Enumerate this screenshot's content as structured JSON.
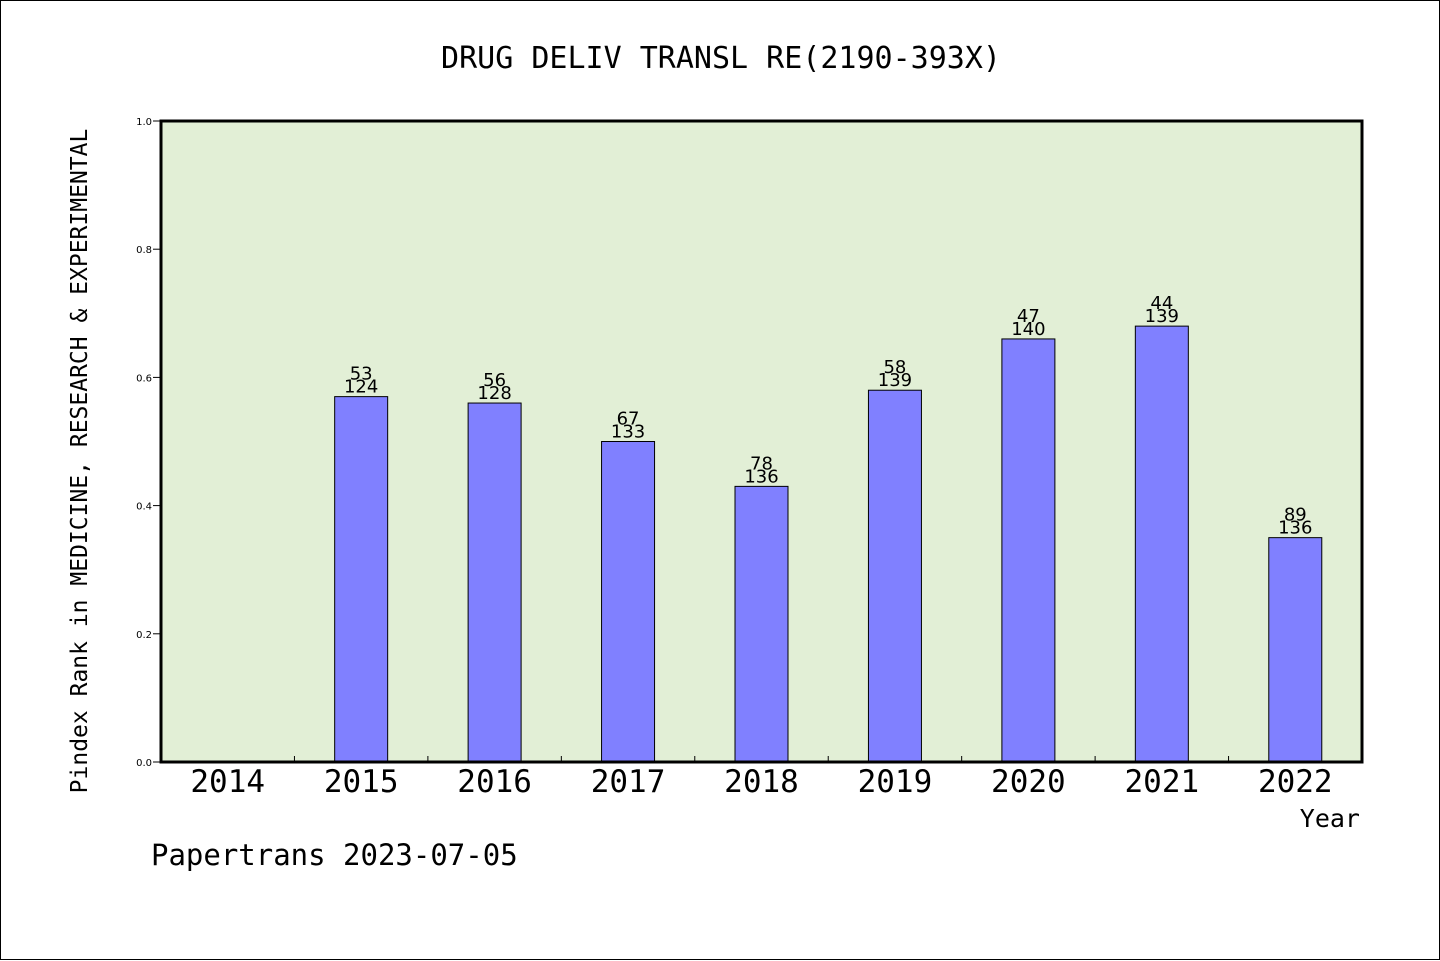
{
  "chart_data": {
    "type": "bar",
    "title": "DRUG DELIV TRANSL RE(2190-393X)",
    "xlabel": "Year",
    "ylabel": "Pindex Rank in MEDICINE, RESEARCH & EXPERIMENTAL",
    "categories": [
      "2014",
      "2015",
      "2016",
      "2017",
      "2018",
      "2019",
      "2020",
      "2021",
      "2022"
    ],
    "values": [
      null,
      0.57,
      0.56,
      0.5,
      0.43,
      0.58,
      0.66,
      0.68,
      0.35
    ],
    "rank_labels": [
      "",
      "53",
      "56",
      "67",
      "78",
      "58",
      "47",
      "44",
      "89"
    ],
    "total_labels": [
      "",
      "124",
      "128",
      "133",
      "136",
      "139",
      "140",
      "139",
      "136"
    ],
    "ylim": [
      0,
      1.0
    ],
    "yticks": [
      "0.0",
      "0.2",
      "0.4",
      "0.6",
      "0.8",
      "1.0"
    ],
    "grid": false,
    "colors": {
      "plot_background": "#e2efd6",
      "bar_fill": "#8080ff",
      "bar_stroke": "#000000",
      "axis": "#000000",
      "text": "#000000"
    }
  },
  "footer": {
    "credit": "Papertrans 2023-07-05"
  }
}
